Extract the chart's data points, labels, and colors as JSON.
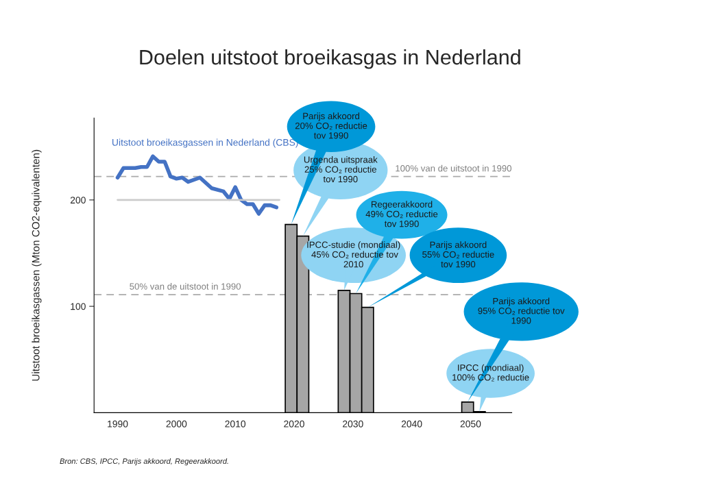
{
  "chart_data": {
    "type": "line",
    "title": "Doelen uitstoot broeikasgas in Nederland",
    "ylabel": "Uitstoot broeikasgassen (Mton CO2-equivalenten)",
    "xlim": [
      1986,
      2057
    ],
    "xticks": [
      1990,
      2000,
      2010,
      2020,
      2030,
      2040,
      2050
    ],
    "ylim": [
      0,
      277
    ],
    "yticks": [
      100,
      200
    ],
    "grid": false,
    "legend": false,
    "series": [
      {
        "name": "Uitstoot broeikasgassen in Nederland (CBS)",
        "color": "#4472c4",
        "x": [
          1990,
          1991,
          1993,
          1994,
          1995,
          1996,
          1997,
          1998,
          1999,
          2000,
          2001,
          2002,
          2004,
          2006,
          2008,
          2009,
          2010,
          2011,
          2012,
          2013,
          2014,
          2015,
          2016,
          2017
        ],
        "values": [
          221,
          230,
          230,
          231,
          231,
          241,
          236,
          236,
          222,
          220,
          221,
          217,
          221,
          211,
          208,
          201,
          212,
          200,
          196,
          196,
          187,
          195,
          195,
          193
        ]
      },
      {
        "color": "#cccccc",
        "x": [
          1990,
          2017.5
        ],
        "values": [
          200,
          200
        ]
      },
      {
        "type": "bar",
        "color": "#a6a6a6",
        "x": [
          2019.5,
          2021.5,
          2028.5,
          2030.5,
          2032.5,
          2049.5,
          2051.5
        ],
        "values": [
          177,
          166,
          115,
          112,
          99,
          10,
          1
        ]
      }
    ],
    "ref_lines": [
      {
        "axis": "y",
        "value": 222,
        "label": "100% van de uitstoot in 1990",
        "color": "#aaaaaa",
        "line_style": "dashed"
      },
      {
        "axis": "y",
        "value": 111,
        "label": "50% van de uitstoot in 1990",
        "color": "#aaaaaa",
        "line_style": "dashed"
      }
    ],
    "annotations": [
      "Parijs akkoord\n20% CO₂ reductie\ntov 1990",
      "Urgenda uitspraak\n25% CO₂ reductie\ntov 1990",
      "Regeerakkoord\n49% CO₂ reductie\ntov 1990",
      "IPCC-studie (mondiaal)\n 45% CO₂ reductie tov\n2010",
      "Parijs akkoord\n55% CO₂ reductie\ntov 1990",
      "Parijs akkoord\n95% CO₂ reductie tov\n1990",
      "IPCC (mondiaal)\n100% CO₂ reductie",
      "Bron: CBS, IPCC, Parijs akkoord, Regeerakkoord."
    ]
  }
}
